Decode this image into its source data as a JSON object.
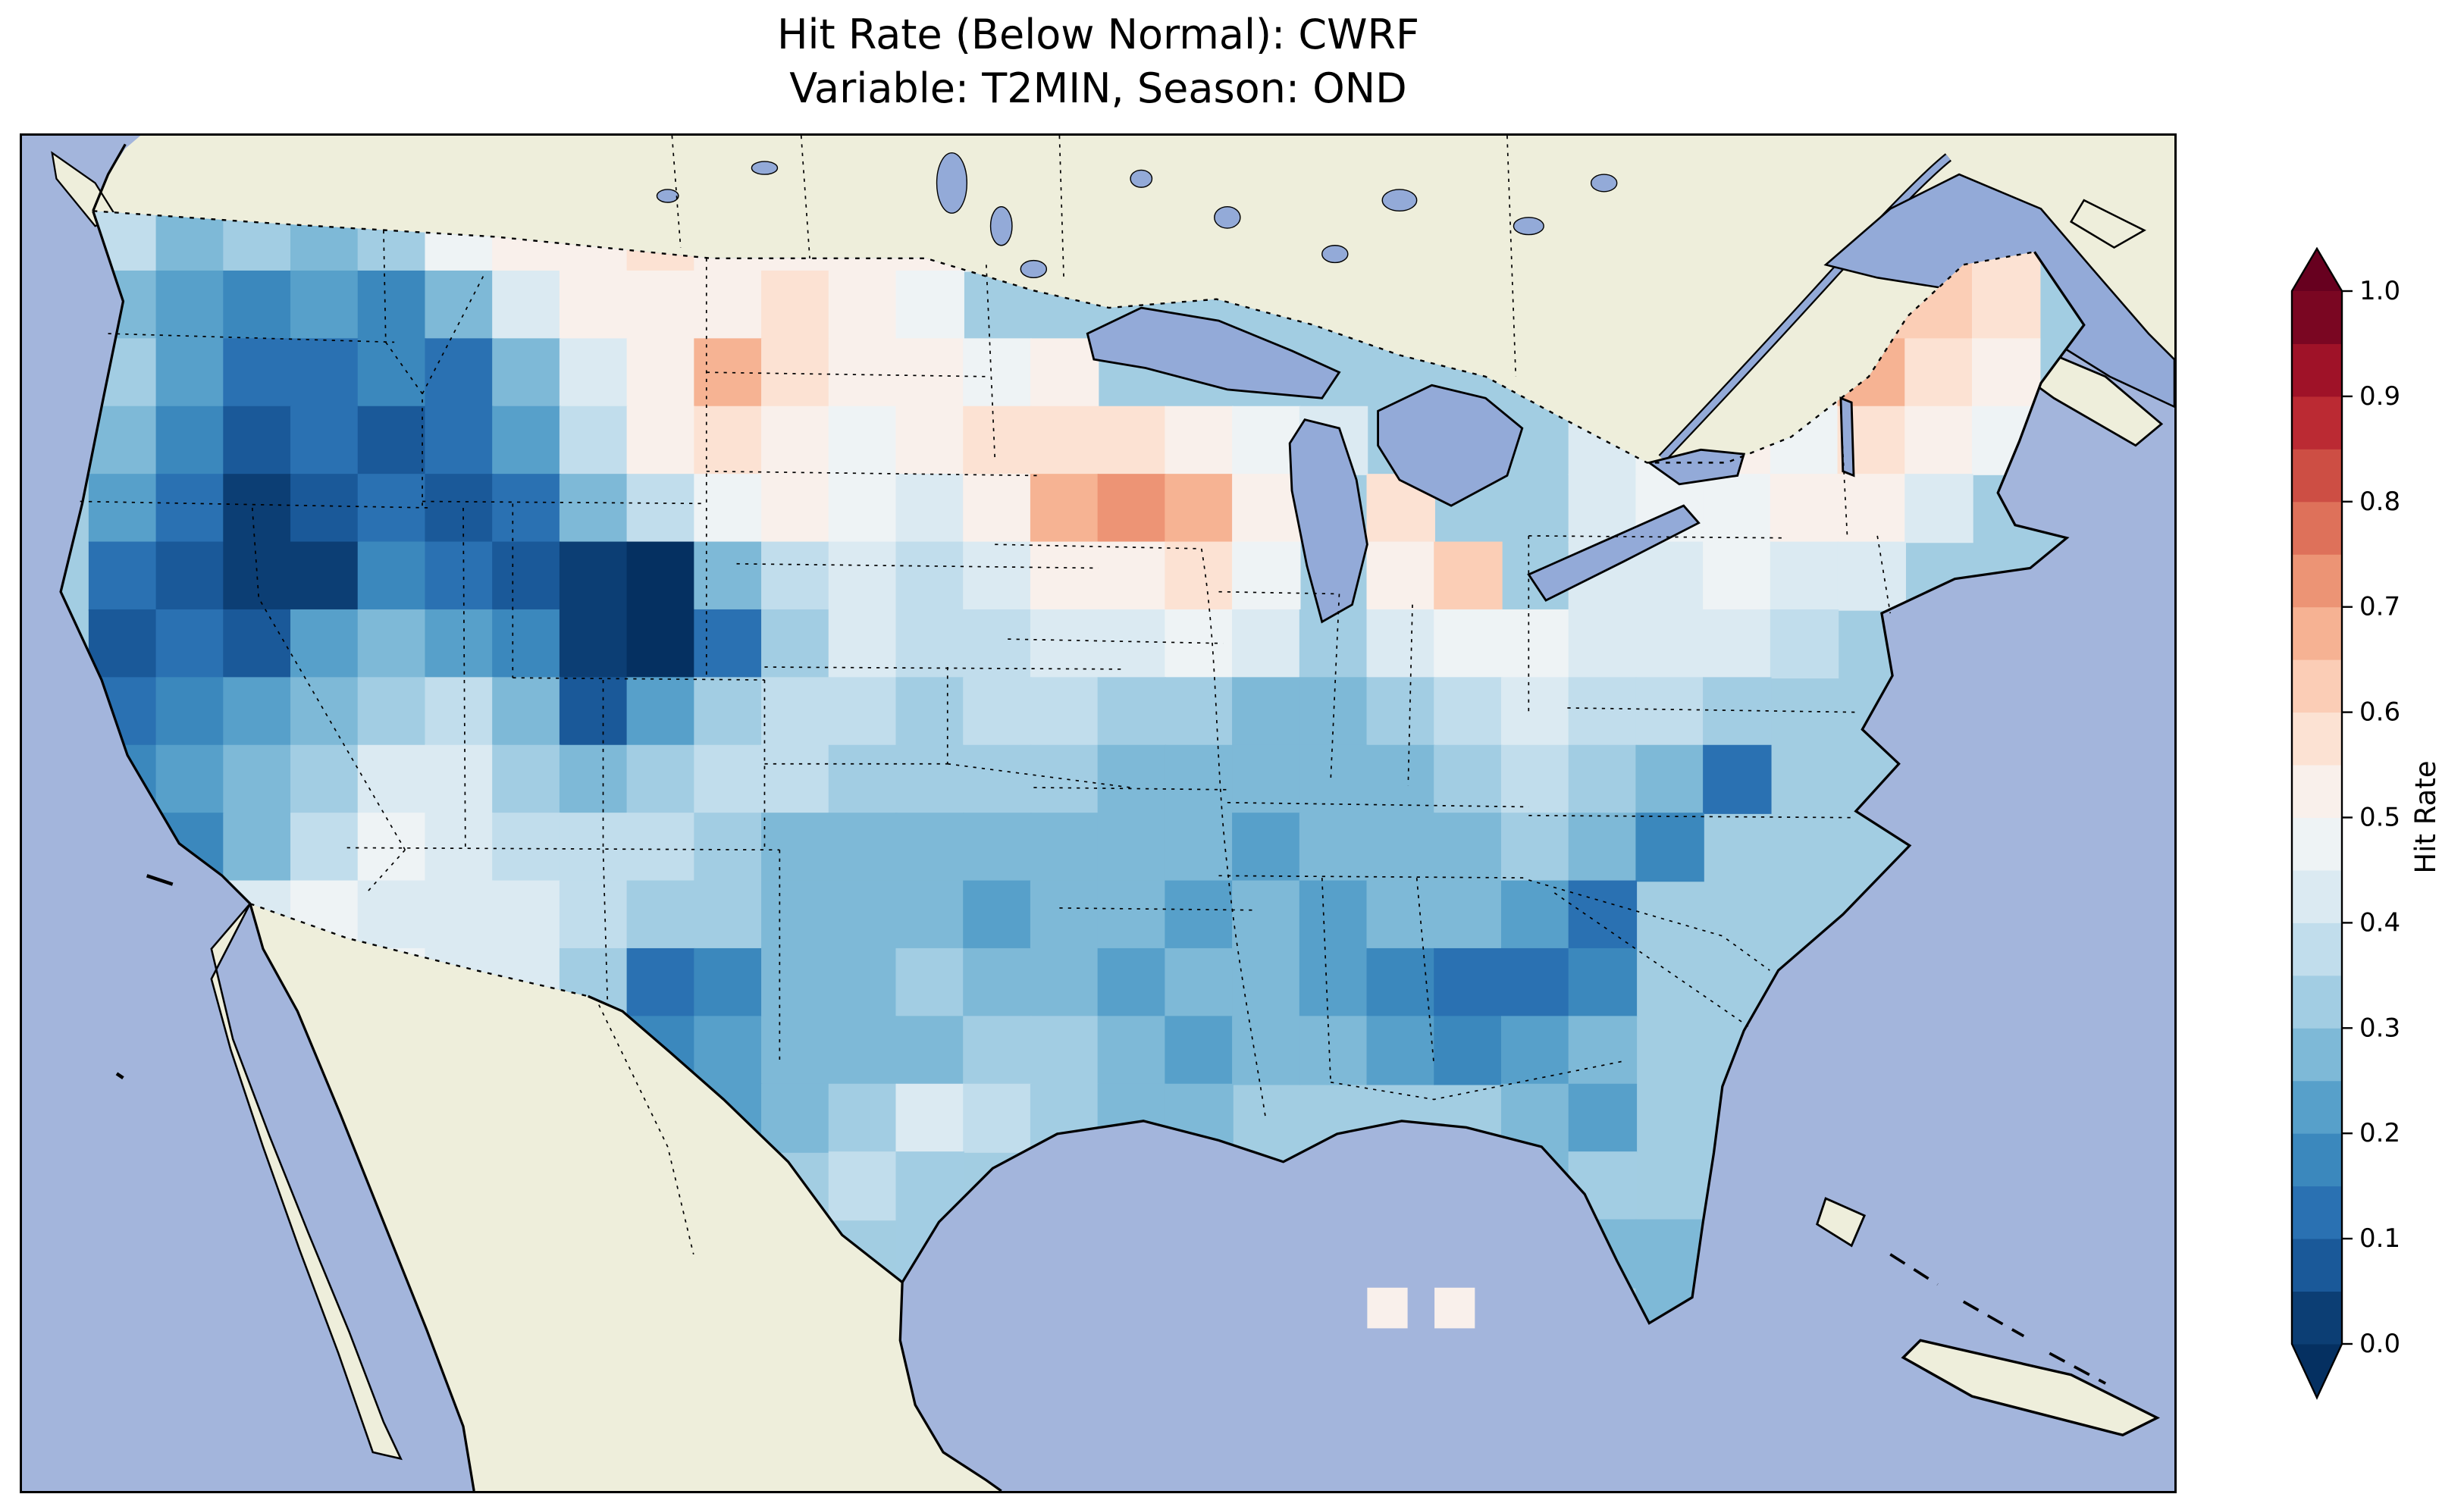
{
  "title": {
    "line1": "Hit Rate (Below Normal): CWRF",
    "line2": "Variable: T2MIN, Season: OND"
  },
  "colorbar": {
    "label": "Hit Rate",
    "ticks": [
      "1.0",
      "0.9",
      "0.8",
      "0.7",
      "0.6",
      "0.5",
      "0.4",
      "0.3",
      "0.2",
      "0.1",
      "0.0"
    ],
    "vmin": 0.0,
    "vmax": 1.0,
    "extend": "both"
  },
  "map": {
    "colors": {
      "ocean": "#a3b5dc",
      "land": "#eeeedb",
      "lake": "#93aad8",
      "us_base": "#a2cde2"
    }
  },
  "chart_data": {
    "type": "heatmap",
    "title": "Hit Rate (Below Normal): CWRF",
    "subtitle": "Variable: T2MIN, Season: OND",
    "value_label": "Hit Rate",
    "vmin": 0.0,
    "vmax": 1.0,
    "legend_position": "right-vertical-colorbar",
    "colormap": {
      "name": "RdBu_r",
      "stops": [
        [
          0.0,
          "#053061"
        ],
        [
          0.1,
          "#2166ac"
        ],
        [
          0.2,
          "#4393c3"
        ],
        [
          0.3,
          "#92c5de"
        ],
        [
          0.4,
          "#d1e5f0"
        ],
        [
          0.5,
          "#f7f7f7"
        ],
        [
          0.6,
          "#fddbc7"
        ],
        [
          0.7,
          "#f4a582"
        ],
        [
          0.8,
          "#d6604d"
        ],
        [
          0.9,
          "#b2182b"
        ],
        [
          1.0,
          "#67001f"
        ]
      ]
    },
    "grid": {
      "cols": 32,
      "rows": 20,
      "coverage": "Row-major over the map axes from the northwest corner; each value is the estimated hit rate (0-1) of that CONUS grid cell; null = outside the CONUS data region (ocean, Canada, Mexico). Values read to nearest 0.05.",
      "values": [
        [
          null,
          null,
          null,
          null,
          null,
          null,
          null,
          null,
          null,
          null,
          null,
          null,
          null,
          null,
          null,
          null,
          null,
          null,
          null,
          null,
          null,
          null,
          null,
          null,
          null,
          null,
          null,
          null,
          null,
          null,
          null,
          null
        ],
        [
          null,
          0.4,
          0.3,
          0.35,
          0.3,
          0.35,
          0.5,
          0.55,
          0.55,
          0.6,
          0.55,
          0.55,
          0.55,
          0.55,
          0.5,
          null,
          null,
          null,
          null,
          null,
          null,
          null,
          null,
          null,
          null,
          null,
          null,
          0.55,
          0.65,
          0.6,
          null,
          null
        ],
        [
          null,
          0.3,
          0.25,
          0.2,
          0.25,
          0.2,
          0.3,
          0.45,
          0.55,
          0.55,
          0.55,
          0.6,
          0.55,
          0.5,
          null,
          null,
          null,
          null,
          null,
          null,
          null,
          null,
          null,
          null,
          null,
          null,
          0.55,
          0.65,
          0.65,
          0.6,
          null,
          null
        ],
        [
          null,
          0.35,
          0.25,
          0.15,
          0.15,
          0.2,
          0.15,
          0.3,
          0.45,
          0.55,
          0.7,
          0.6,
          0.55,
          0.55,
          0.5,
          0.55,
          null,
          null,
          null,
          null,
          null,
          null,
          null,
          null,
          null,
          0.5,
          0.55,
          0.7,
          0.6,
          0.55,
          null,
          null
        ],
        [
          null,
          0.3,
          0.2,
          0.1,
          0.15,
          0.1,
          0.15,
          0.25,
          0.4,
          0.55,
          0.6,
          0.55,
          0.5,
          0.55,
          0.6,
          0.6,
          0.6,
          0.55,
          0.5,
          0.45,
          null,
          null,
          null,
          0.45,
          0.5,
          0.55,
          0.5,
          0.6,
          0.55,
          0.5,
          null,
          null
        ],
        [
          null,
          0.25,
          0.15,
          0.05,
          0.1,
          0.15,
          0.1,
          0.15,
          0.3,
          0.4,
          0.5,
          0.55,
          0.5,
          0.45,
          0.55,
          0.7,
          0.75,
          0.7,
          0.55,
          null,
          0.6,
          null,
          null,
          0.45,
          0.5,
          0.5,
          0.55,
          0.55,
          0.45,
          null,
          null,
          null
        ],
        [
          null,
          0.15,
          0.1,
          0.05,
          0.05,
          0.2,
          0.15,
          0.1,
          0.05,
          0.02,
          0.3,
          0.4,
          0.45,
          0.4,
          0.45,
          0.55,
          0.55,
          0.6,
          0.5,
          null,
          0.55,
          0.65,
          null,
          0.45,
          0.45,
          0.5,
          0.45,
          0.45,
          null,
          null,
          null,
          null
        ],
        [
          null,
          0.1,
          0.15,
          0.1,
          0.25,
          0.3,
          0.25,
          0.2,
          0.05,
          0.02,
          0.15,
          0.35,
          0.45,
          0.4,
          0.4,
          0.45,
          0.45,
          0.5,
          0.45,
          0.35,
          0.45,
          0.5,
          0.5,
          0.45,
          0.45,
          0.45,
          0.4,
          null,
          null,
          null,
          null,
          null
        ],
        [
          null,
          0.15,
          0.2,
          0.25,
          0.3,
          0.35,
          0.4,
          0.3,
          0.1,
          0.25,
          0.35,
          0.4,
          0.4,
          0.35,
          0.4,
          0.4,
          0.35,
          0.35,
          0.3,
          0.3,
          0.35,
          0.4,
          0.45,
          0.4,
          0.4,
          0.35,
          null,
          null,
          null,
          null,
          null,
          null
        ],
        [
          null,
          0.2,
          0.25,
          0.3,
          0.35,
          0.45,
          0.45,
          0.35,
          0.3,
          0.35,
          0.4,
          0.4,
          0.35,
          0.35,
          0.35,
          0.35,
          0.3,
          0.3,
          0.3,
          0.3,
          0.3,
          0.35,
          0.4,
          0.35,
          0.3,
          0.15,
          null,
          null,
          null,
          null,
          null,
          null
        ],
        [
          null,
          0.25,
          0.2,
          0.3,
          0.4,
          0.5,
          0.45,
          0.4,
          0.4,
          0.4,
          0.35,
          0.3,
          0.3,
          0.3,
          0.3,
          0.3,
          0.3,
          0.3,
          0.25,
          0.3,
          0.3,
          0.3,
          0.35,
          0.3,
          0.2,
          null,
          null,
          null,
          null,
          null,
          null,
          null
        ],
        [
          null,
          null,
          0.35,
          0.45,
          0.5,
          0.45,
          0.45,
          0.45,
          0.4,
          0.35,
          0.35,
          0.3,
          0.3,
          0.3,
          0.25,
          0.3,
          0.3,
          0.25,
          0.3,
          0.25,
          0.3,
          0.3,
          0.25,
          0.15,
          null,
          null,
          null,
          null,
          null,
          null,
          null,
          null
        ],
        [
          null,
          null,
          null,
          0.45,
          0.5,
          0.5,
          0.45,
          0.45,
          0.35,
          0.15,
          0.2,
          0.3,
          0.3,
          0.35,
          0.3,
          0.3,
          0.25,
          0.3,
          0.3,
          0.25,
          0.2,
          0.15,
          0.15,
          0.2,
          null,
          null,
          null,
          null,
          null,
          null,
          null,
          null
        ],
        [
          null,
          null,
          null,
          null,
          null,
          null,
          null,
          null,
          0.35,
          0.2,
          0.25,
          0.3,
          0.3,
          0.3,
          0.35,
          0.35,
          0.3,
          0.25,
          0.3,
          0.3,
          0.25,
          0.2,
          0.25,
          0.3,
          null,
          null,
          null,
          null,
          null,
          null,
          null,
          null
        ],
        [
          null,
          null,
          null,
          null,
          null,
          null,
          null,
          null,
          null,
          null,
          0.25,
          0.3,
          0.35,
          0.45,
          0.4,
          0.35,
          0.3,
          0.3,
          null,
          null,
          null,
          null,
          0.3,
          0.25,
          null,
          null,
          null,
          null,
          null,
          null,
          null,
          null
        ],
        [
          null,
          null,
          null,
          null,
          null,
          null,
          null,
          null,
          null,
          null,
          null,
          null,
          0.4,
          0.35,
          null,
          null,
          null,
          null,
          null,
          null,
          null,
          null,
          0.3,
          0.35,
          null,
          null,
          null,
          null,
          null,
          null,
          null,
          null
        ],
        [
          null,
          null,
          null,
          null,
          null,
          null,
          null,
          null,
          null,
          null,
          null,
          null,
          null,
          0.35,
          null,
          null,
          null,
          null,
          null,
          null,
          null,
          null,
          null,
          0.3,
          0.3,
          null,
          null,
          null,
          null,
          null,
          null,
          null
        ],
        [
          null,
          null,
          null,
          null,
          null,
          null,
          null,
          null,
          null,
          null,
          null,
          null,
          null,
          null,
          null,
          null,
          null,
          null,
          null,
          null,
          null,
          null,
          null,
          null,
          0.3,
          null,
          null,
          null,
          null,
          null,
          null,
          null
        ],
        [
          null,
          null,
          null,
          null,
          null,
          null,
          null,
          null,
          null,
          null,
          null,
          null,
          null,
          null,
          null,
          null,
          null,
          null,
          null,
          null,
          null,
          null,
          null,
          null,
          null,
          null,
          null,
          null,
          null,
          null,
          null,
          null
        ],
        [
          null,
          null,
          null,
          null,
          null,
          null,
          null,
          null,
          null,
          null,
          null,
          null,
          null,
          null,
          null,
          null,
          null,
          null,
          null,
          null,
          null,
          null,
          null,
          null,
          null,
          null,
          null,
          null,
          null,
          null,
          null,
          null
        ]
      ],
      "stray_cells": [
        {
          "row": 17,
          "col": 20,
          "value": 0.55
        },
        {
          "row": 17,
          "col": 21,
          "value": 0.55
        }
      ]
    },
    "notable_features": [
      "Very low hit rates (0.0-0.1, dark navy) over NW Wyoming / Idaho-Nevada border region and parts of coastal / northern California",
      "Broad low-moderate rates (0.2-0.35, medium blue) across the Great Basin, Plains, Texas, Midwest and Southeast",
      "High rates (0.6-0.75, salmon/orange) over Minnesota-Wisconsin, the Michigan thumb, eastern Montana, the northern Plains strip and Maine / New England",
      "Dark-blue low spots along the Carolinas coast, Chesapeake Bay, southern Georgia and the western Texas Panhandle"
    ]
  }
}
